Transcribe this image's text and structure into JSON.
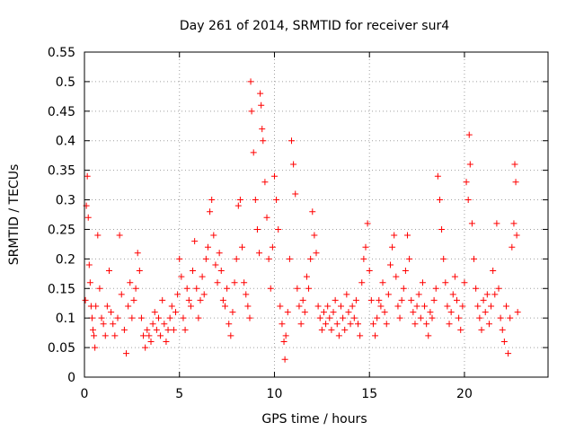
{
  "chart_data": {
    "type": "scatter",
    "title": "Day 261 of 2014, SRMTID for receiver sur4",
    "xlabel": "GPS time / hours",
    "ylabel": "SRMTID / TECUs",
    "xlim": [
      0,
      24.4
    ],
    "ylim": [
      0,
      0.55
    ],
    "grid": true,
    "marker": "+",
    "series_color": "#ff0000",
    "x_ticks": [
      {
        "value": 0,
        "label": "0"
      },
      {
        "value": 5,
        "label": "5"
      },
      {
        "value": 10,
        "label": "10"
      },
      {
        "value": 15,
        "label": "15"
      },
      {
        "value": 20,
        "label": "20"
      }
    ],
    "y_ticks": [
      {
        "value": 0,
        "label": "0"
      },
      {
        "value": 0.05,
        "label": "0.05"
      },
      {
        "value": 0.1,
        "label": "0.1"
      },
      {
        "value": 0.15,
        "label": "0.15"
      },
      {
        "value": 0.2,
        "label": "0.2"
      },
      {
        "value": 0.25,
        "label": "0.25"
      },
      {
        "value": 0.3,
        "label": "0.3"
      },
      {
        "value": 0.35,
        "label": "0.35"
      },
      {
        "value": 0.4,
        "label": "0.4"
      },
      {
        "value": 0.45,
        "label": "0.45"
      },
      {
        "value": 0.5,
        "label": "0.5"
      },
      {
        "value": 0.55,
        "label": "0.55"
      }
    ],
    "series": [
      {
        "name": "SRMTID",
        "points": [
          [
            0.05,
            0.13
          ],
          [
            0.1,
            0.29
          ],
          [
            0.15,
            0.34
          ],
          [
            0.2,
            0.27
          ],
          [
            0.25,
            0.19
          ],
          [
            0.3,
            0.16
          ],
          [
            0.35,
            0.12
          ],
          [
            0.4,
            0.1
          ],
          [
            0.45,
            0.08
          ],
          [
            0.5,
            0.07
          ],
          [
            0.55,
            0.05
          ],
          [
            0.6,
            0.12
          ],
          [
            0.7,
            0.24
          ],
          [
            0.8,
            0.15
          ],
          [
            0.9,
            0.1
          ],
          [
            1.0,
            0.09
          ],
          [
            1.1,
            0.07
          ],
          [
            1.2,
            0.12
          ],
          [
            1.3,
            0.18
          ],
          [
            1.4,
            0.11
          ],
          [
            1.5,
            0.09
          ],
          [
            1.6,
            0.07
          ],
          [
            1.75,
            0.1
          ],
          [
            1.85,
            0.24
          ],
          [
            1.95,
            0.14
          ],
          [
            2.1,
            0.08
          ],
          [
            2.2,
            0.04
          ],
          [
            2.3,
            0.12
          ],
          [
            2.4,
            0.16
          ],
          [
            2.5,
            0.1
          ],
          [
            2.6,
            0.13
          ],
          [
            2.7,
            0.15
          ],
          [
            2.8,
            0.21
          ],
          [
            2.9,
            0.18
          ],
          [
            3.0,
            0.1
          ],
          [
            3.1,
            0.07
          ],
          [
            3.2,
            0.05
          ],
          [
            3.3,
            0.08
          ],
          [
            3.4,
            0.07
          ],
          [
            3.5,
            0.06
          ],
          [
            3.6,
            0.09
          ],
          [
            3.7,
            0.11
          ],
          [
            3.8,
            0.08
          ],
          [
            3.9,
            0.1
          ],
          [
            4.0,
            0.07
          ],
          [
            4.1,
            0.13
          ],
          [
            4.2,
            0.09
          ],
          [
            4.3,
            0.06
          ],
          [
            4.4,
            0.08
          ],
          [
            4.5,
            0.1
          ],
          [
            4.6,
            0.12
          ],
          [
            4.7,
            0.08
          ],
          [
            4.8,
            0.11
          ],
          [
            4.9,
            0.14
          ],
          [
            5.0,
            0.2
          ],
          [
            5.1,
            0.17
          ],
          [
            5.2,
            0.1
          ],
          [
            5.3,
            0.08
          ],
          [
            5.4,
            0.15
          ],
          [
            5.5,
            0.13
          ],
          [
            5.6,
            0.12
          ],
          [
            5.7,
            0.18
          ],
          [
            5.8,
            0.23
          ],
          [
            5.9,
            0.15
          ],
          [
            6.0,
            0.1
          ],
          [
            6.1,
            0.13
          ],
          [
            6.2,
            0.17
          ],
          [
            6.3,
            0.14
          ],
          [
            6.4,
            0.2
          ],
          [
            6.5,
            0.22
          ],
          [
            6.6,
            0.28
          ],
          [
            6.7,
            0.3
          ],
          [
            6.8,
            0.24
          ],
          [
            6.9,
            0.19
          ],
          [
            7.0,
            0.16
          ],
          [
            7.1,
            0.21
          ],
          [
            7.2,
            0.18
          ],
          [
            7.3,
            0.13
          ],
          [
            7.4,
            0.12
          ],
          [
            7.5,
            0.15
          ],
          [
            7.6,
            0.09
          ],
          [
            7.7,
            0.07
          ],
          [
            7.8,
            0.11
          ],
          [
            7.9,
            0.16
          ],
          [
            8.0,
            0.2
          ],
          [
            8.1,
            0.29
          ],
          [
            8.2,
            0.3
          ],
          [
            8.3,
            0.22
          ],
          [
            8.4,
            0.16
          ],
          [
            8.5,
            0.14
          ],
          [
            8.6,
            0.12
          ],
          [
            8.7,
            0.1
          ],
          [
            8.75,
            0.5
          ],
          [
            8.8,
            0.45
          ],
          [
            8.9,
            0.38
          ],
          [
            9.0,
            0.3
          ],
          [
            9.1,
            0.25
          ],
          [
            9.2,
            0.21
          ],
          [
            9.25,
            0.48
          ],
          [
            9.3,
            0.46
          ],
          [
            9.35,
            0.42
          ],
          [
            9.4,
            0.4
          ],
          [
            9.5,
            0.33
          ],
          [
            9.6,
            0.27
          ],
          [
            9.7,
            0.2
          ],
          [
            9.8,
            0.15
          ],
          [
            9.9,
            0.22
          ],
          [
            10.0,
            0.34
          ],
          [
            10.1,
            0.3
          ],
          [
            10.2,
            0.25
          ],
          [
            10.3,
            0.12
          ],
          [
            10.4,
            0.09
          ],
          [
            10.5,
            0.06
          ],
          [
            10.55,
            0.03
          ],
          [
            10.6,
            0.07
          ],
          [
            10.7,
            0.11
          ],
          [
            10.8,
            0.2
          ],
          [
            10.9,
            0.4
          ],
          [
            11.0,
            0.36
          ],
          [
            11.1,
            0.31
          ],
          [
            11.2,
            0.15
          ],
          [
            11.3,
            0.12
          ],
          [
            11.4,
            0.09
          ],
          [
            11.5,
            0.13
          ],
          [
            11.6,
            0.11
          ],
          [
            11.7,
            0.17
          ],
          [
            11.8,
            0.15
          ],
          [
            11.9,
            0.2
          ],
          [
            12.0,
            0.28
          ],
          [
            12.1,
            0.24
          ],
          [
            12.2,
            0.21
          ],
          [
            12.3,
            0.12
          ],
          [
            12.4,
            0.1
          ],
          [
            12.5,
            0.08
          ],
          [
            12.6,
            0.11
          ],
          [
            12.7,
            0.09
          ],
          [
            12.8,
            0.12
          ],
          [
            12.9,
            0.1
          ],
          [
            13.0,
            0.08
          ],
          [
            13.1,
            0.11
          ],
          [
            13.2,
            0.13
          ],
          [
            13.3,
            0.09
          ],
          [
            13.4,
            0.07
          ],
          [
            13.5,
            0.12
          ],
          [
            13.6,
            0.1
          ],
          [
            13.7,
            0.08
          ],
          [
            13.8,
            0.14
          ],
          [
            13.9,
            0.11
          ],
          [
            14.0,
            0.09
          ],
          [
            14.1,
            0.12
          ],
          [
            14.2,
            0.1
          ],
          [
            14.3,
            0.13
          ],
          [
            14.4,
            0.09
          ],
          [
            14.5,
            0.07
          ],
          [
            14.6,
            0.16
          ],
          [
            14.7,
            0.2
          ],
          [
            14.8,
            0.22
          ],
          [
            14.9,
            0.26
          ],
          [
            15.0,
            0.18
          ],
          [
            15.1,
            0.13
          ],
          [
            15.2,
            0.09
          ],
          [
            15.3,
            0.07
          ],
          [
            15.4,
            0.1
          ],
          [
            15.5,
            0.13
          ],
          [
            15.6,
            0.12
          ],
          [
            15.7,
            0.16
          ],
          [
            15.8,
            0.11
          ],
          [
            15.9,
            0.09
          ],
          [
            16.0,
            0.14
          ],
          [
            16.1,
            0.19
          ],
          [
            16.2,
            0.22
          ],
          [
            16.3,
            0.24
          ],
          [
            16.4,
            0.17
          ],
          [
            16.5,
            0.12
          ],
          [
            16.6,
            0.1
          ],
          [
            16.7,
            0.13
          ],
          [
            16.8,
            0.15
          ],
          [
            16.9,
            0.18
          ],
          [
            17.0,
            0.24
          ],
          [
            17.1,
            0.2
          ],
          [
            17.2,
            0.13
          ],
          [
            17.3,
            0.11
          ],
          [
            17.4,
            0.09
          ],
          [
            17.5,
            0.12
          ],
          [
            17.6,
            0.14
          ],
          [
            17.7,
            0.1
          ],
          [
            17.8,
            0.16
          ],
          [
            17.9,
            0.12
          ],
          [
            18.0,
            0.09
          ],
          [
            18.1,
            0.07
          ],
          [
            18.2,
            0.11
          ],
          [
            18.3,
            0.1
          ],
          [
            18.4,
            0.13
          ],
          [
            18.5,
            0.15
          ],
          [
            18.6,
            0.34
          ],
          [
            18.7,
            0.3
          ],
          [
            18.8,
            0.25
          ],
          [
            18.9,
            0.2
          ],
          [
            19.0,
            0.16
          ],
          [
            19.1,
            0.12
          ],
          [
            19.2,
            0.09
          ],
          [
            19.3,
            0.11
          ],
          [
            19.4,
            0.14
          ],
          [
            19.5,
            0.17
          ],
          [
            19.6,
            0.13
          ],
          [
            19.7,
            0.1
          ],
          [
            19.8,
            0.08
          ],
          [
            19.9,
            0.12
          ],
          [
            20.0,
            0.16
          ],
          [
            20.1,
            0.33
          ],
          [
            20.2,
            0.3
          ],
          [
            20.25,
            0.41
          ],
          [
            20.3,
            0.36
          ],
          [
            20.4,
            0.26
          ],
          [
            20.5,
            0.2
          ],
          [
            20.6,
            0.15
          ],
          [
            20.7,
            0.12
          ],
          [
            20.8,
            0.1
          ],
          [
            20.9,
            0.08
          ],
          [
            21.0,
            0.13
          ],
          [
            21.1,
            0.11
          ],
          [
            21.2,
            0.14
          ],
          [
            21.3,
            0.09
          ],
          [
            21.4,
            0.12
          ],
          [
            21.5,
            0.18
          ],
          [
            21.6,
            0.14
          ],
          [
            21.7,
            0.26
          ],
          [
            21.8,
            0.15
          ],
          [
            21.9,
            0.1
          ],
          [
            22.0,
            0.08
          ],
          [
            22.1,
            0.06
          ],
          [
            22.2,
            0.12
          ],
          [
            22.3,
            0.04
          ],
          [
            22.4,
            0.1
          ],
          [
            22.5,
            0.22
          ],
          [
            22.6,
            0.26
          ],
          [
            22.65,
            0.36
          ],
          [
            22.7,
            0.33
          ],
          [
            22.75,
            0.24
          ],
          [
            22.8,
            0.11
          ]
        ]
      }
    ]
  }
}
